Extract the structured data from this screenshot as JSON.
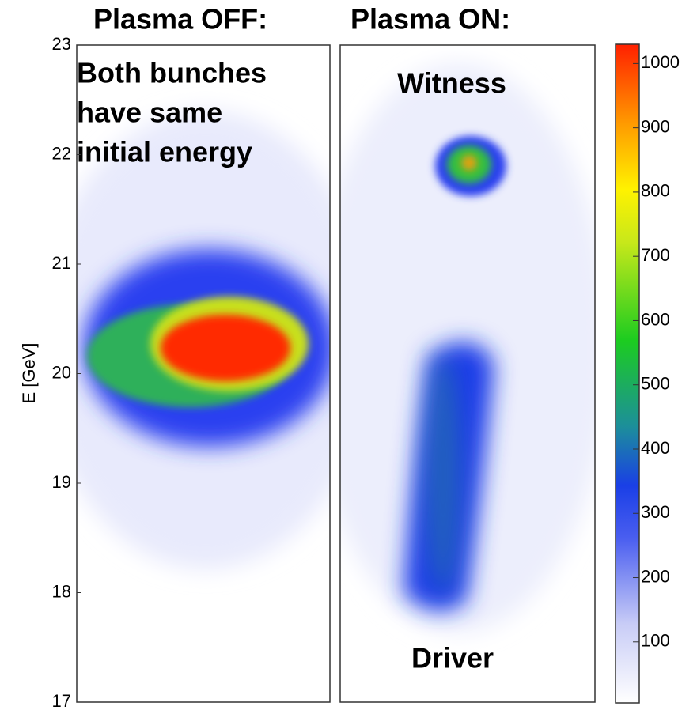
{
  "chart_data": {
    "type": "heatmap",
    "panels": [
      {
        "title": "Plasma OFF:",
        "annotations": [
          "Both bunches",
          "have same",
          "initial energy"
        ]
      },
      {
        "title": "Plasma ON:",
        "annotations": [
          "Witness",
          "Driver"
        ]
      }
    ],
    "ylabel": "E [GeV]",
    "ylim": [
      17,
      23
    ],
    "yticks": [
      17,
      18,
      19,
      20,
      21,
      22,
      23
    ],
    "colorbar": {
      "lim": [
        5,
        1030
      ],
      "ticks": [
        100,
        200,
        300,
        400,
        500,
        600,
        700,
        800,
        900,
        1000
      ]
    }
  }
}
